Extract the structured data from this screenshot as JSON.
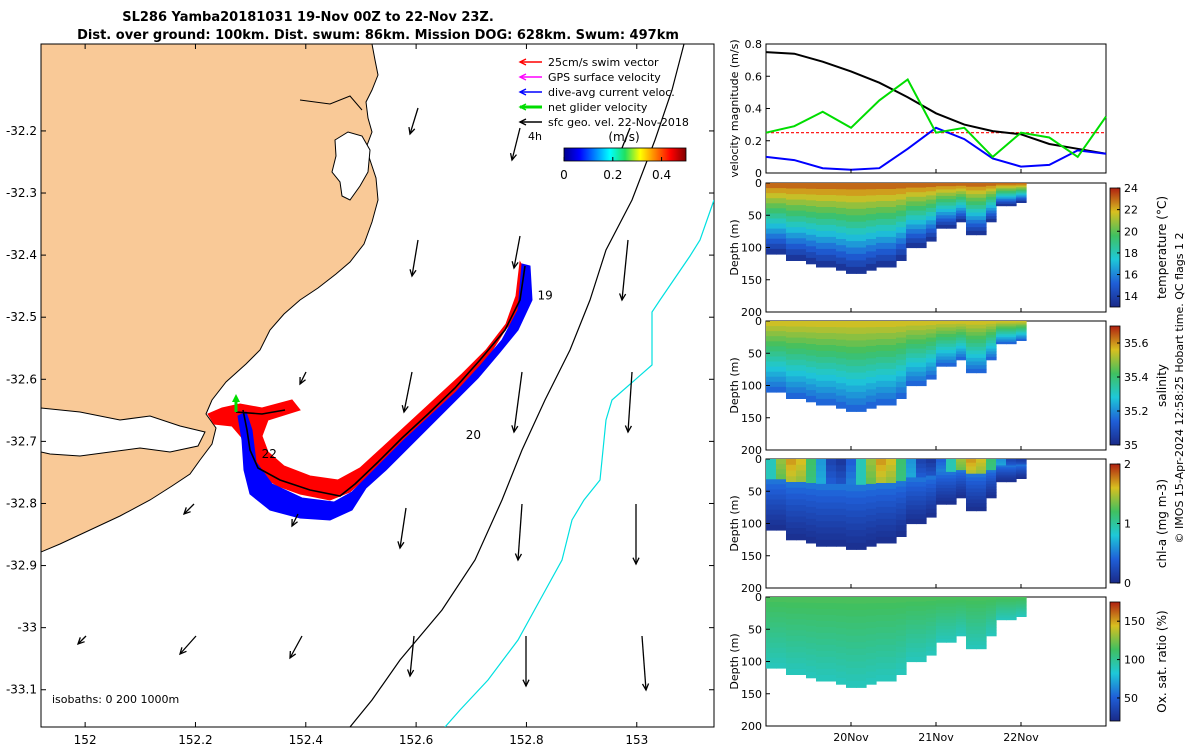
{
  "title": {
    "line1": "SL286 Yamba20181031 19-Nov 00Z to 22-Nov 23Z.",
    "line2": "Dist. over ground: 100km. Dist. swum: 86km. Mission DOG: 628km. Swum: 497km"
  },
  "map": {
    "lon_ticks": [
      "152",
      "152.2",
      "152.4",
      "152.6",
      "152.8",
      "153"
    ],
    "lat_ticks": [
      "-32.2",
      "-32.3",
      "-32.4",
      "-32.5",
      "-32.6",
      "-32.7",
      "-32.8",
      "-32.9",
      "-33",
      "-33.1"
    ],
    "xlim": [
      151.92,
      153.14
    ],
    "ylim": [
      -33.16,
      -32.06
    ],
    "legend": [
      {
        "label": "25cm/s swim vector",
        "color": "#ff0000"
      },
      {
        "label": "GPS surface velocity",
        "color": "#ff00ff"
      },
      {
        "label": "dive-avg current veloc.",
        "color": "#0000ff"
      },
      {
        "label": "net glider velocity",
        "color": "#00dd00"
      },
      {
        "label": "sfc geo. vel. 22-Nov-2018",
        "color": "#000000"
      }
    ],
    "scale_label": "4h",
    "colorbar": {
      "unit": "(m/s)",
      "ticks": [
        "0",
        "0.2",
        "0.4"
      ],
      "range": [
        0,
        0.5
      ]
    },
    "day_labels": [
      {
        "label": "19",
        "lon": 152.82,
        "lat": -32.465
      },
      {
        "label": "20",
        "lon": 152.69,
        "lat": -32.69
      },
      {
        "label": "22",
        "lon": 152.32,
        "lat": -32.72
      }
    ],
    "isobath_note": "isobaths: 0   200   1000m"
  },
  "chart_data": [
    {
      "type": "line",
      "ylabel": "velocity magnitude (m/s)",
      "ylim": [
        0,
        0.8
      ],
      "yticks": [
        "0",
        "0.2",
        "0.4",
        "0.6",
        "0.8"
      ],
      "series": [
        {
          "color": "#ff0000",
          "values": [
            0.25,
            0.25,
            0.25,
            0.25,
            0.25,
            0.25,
            0.25,
            0.25,
            0.25,
            0.25,
            0.25,
            0.25,
            0.25
          ]
        },
        {
          "color": "#000000",
          "values": [
            0.75,
            0.74,
            0.69,
            0.63,
            0.56,
            0.47,
            0.37,
            0.3,
            0.26,
            0.24,
            0.18,
            0.15,
            0.12
          ]
        },
        {
          "color": "#0000ff",
          "values": [
            0.1,
            0.08,
            0.03,
            0.02,
            0.03,
            0.15,
            0.28,
            0.21,
            0.09,
            0.04,
            0.05,
            0.14,
            0.12
          ]
        },
        {
          "color": "#00dd00",
          "values": [
            0.25,
            0.29,
            0.38,
            0.28,
            0.45,
            0.58,
            0.25,
            0.28,
            0.1,
            0.25,
            0.22,
            0.1,
            0.35
          ]
        }
      ]
    },
    {
      "type": "heatmap",
      "variable": "temperature",
      "ylabel": "Depth (m)",
      "clabel": "temperature (°C)",
      "yticks": [
        "0",
        "50",
        "100",
        "150",
        "200"
      ],
      "cticks": [
        "14",
        "16",
        "18",
        "20",
        "22",
        "24"
      ],
      "crange": [
        13,
        24
      ],
      "bottom_depth": [
        110,
        120,
        125,
        130,
        135,
        140,
        135,
        130,
        120,
        100,
        90,
        70,
        60,
        80,
        60,
        35,
        30
      ],
      "surface_value": 23,
      "deep_value": 13.5
    },
    {
      "type": "heatmap",
      "variable": "salinity",
      "ylabel": "Depth (m)",
      "clabel": "salinity",
      "yticks": [
        "0",
        "50",
        "100",
        "150",
        "200"
      ],
      "cticks": [
        "35",
        "35.2",
        "35.4",
        "35.6"
      ],
      "crange": [
        35,
        35.7
      ],
      "bottom_depth": [
        110,
        120,
        125,
        130,
        135,
        140,
        135,
        130,
        120,
        100,
        90,
        70,
        60,
        80,
        60,
        35,
        30
      ],
      "surface_value": 35.55,
      "deep_value": 35.15
    },
    {
      "type": "heatmap",
      "variable": "chl-a",
      "ylabel": "Depth (m)",
      "clabel": "chl-a (mg m-3)",
      "yticks": [
        "0",
        "50",
        "100",
        "150",
        "200"
      ],
      "cticks": [
        "0",
        "1",
        "2"
      ],
      "crange": [
        0,
        2
      ],
      "bottom_depth": [
        110,
        125,
        130,
        135,
        135,
        140,
        135,
        130,
        120,
        100,
        90,
        70,
        60,
        80,
        60,
        35,
        30
      ],
      "surface_value": 0.9,
      "deep_value": 0.05
    },
    {
      "type": "heatmap",
      "variable": "oxygen saturation",
      "ylabel": "Depth (m)",
      "clabel": "Ox. sat. ratio (%)",
      "yticks": [
        "0",
        "50",
        "100",
        "150",
        "200"
      ],
      "cticks": [
        "50",
        "100",
        "150"
      ],
      "crange": [
        20,
        175
      ],
      "bottom_depth": [
        110,
        120,
        125,
        130,
        135,
        140,
        135,
        130,
        120,
        100,
        90,
        70,
        60,
        80,
        60,
        35,
        30
      ],
      "surface_value": 115,
      "deep_value": 90
    }
  ],
  "time_axis": {
    "ticks": [
      "20Nov",
      "21Nov",
      "22Nov"
    ]
  },
  "credit": "© IMOS 15-Apr-2024 12:58:25 Hobart time. QC flags 1  2"
}
